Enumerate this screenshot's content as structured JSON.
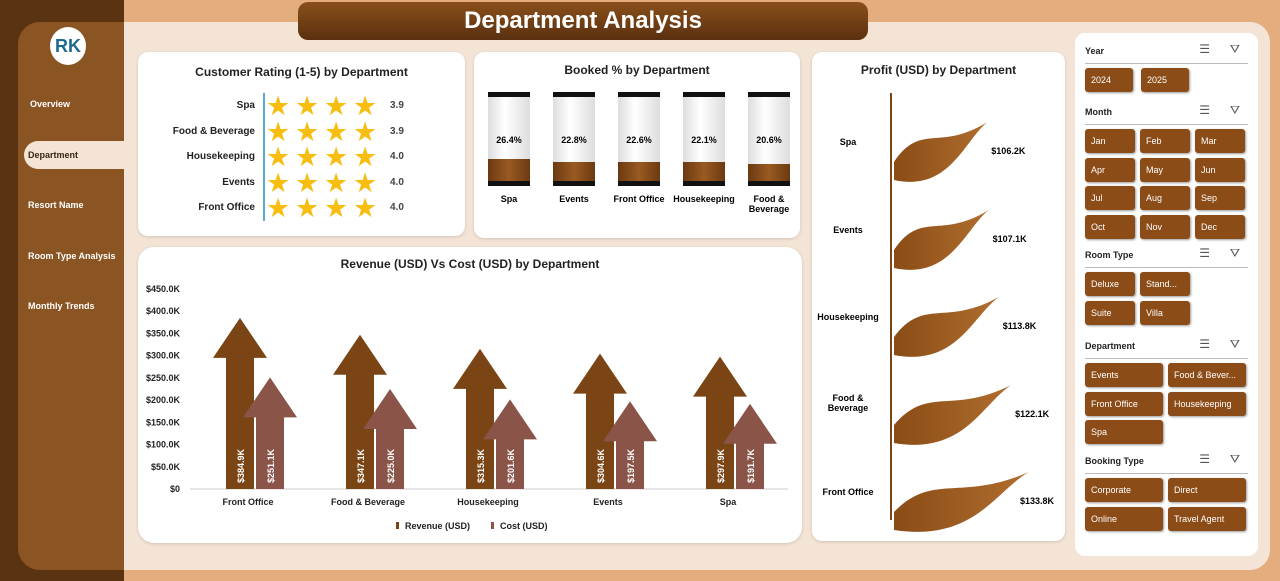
{
  "title": "Department Analysis",
  "nav": [
    "Overview",
    "Department",
    "Resort Name",
    "Room Type Analysis",
    "Monthly Trends"
  ],
  "logo": "RK",
  "rating": {
    "title": "Customer Rating (1-5) by Department",
    "rows": [
      {
        "label": "Spa",
        "value": "3.9"
      },
      {
        "label": "Food & Beverage",
        "value": "3.9"
      },
      {
        "label": "Housekeeping",
        "value": "4.0"
      },
      {
        "label": "Events",
        "value": "4.0"
      },
      {
        "label": "Front Office",
        "value": "4.0"
      }
    ]
  },
  "booked": {
    "title": "Booked % by Department",
    "items": [
      {
        "label": "Spa",
        "value": 26.4,
        "text": "26.4%"
      },
      {
        "label": "Events",
        "value": 22.8,
        "text": "22.8%"
      },
      {
        "label": "Front Office",
        "value": 22.6,
        "text": "22.6%"
      },
      {
        "label": "Housekeeping",
        "value": 22.1,
        "text": "22.1%"
      },
      {
        "label": "Food &\nBeverage",
        "value": 20.6,
        "text": "20.6%"
      }
    ]
  },
  "profit": {
    "title": "Profit (USD) by Department",
    "items": [
      {
        "label": "Spa",
        "value": 106.2,
        "text": "$106.2K"
      },
      {
        "label": "Events",
        "value": 107.1,
        "text": "$107.1K"
      },
      {
        "label": "Housekeeping",
        "value": 113.8,
        "text": "$113.8K"
      },
      {
        "label": "Food &\nBeverage",
        "value": 122.1,
        "text": "$122.1K"
      },
      {
        "label": "Front Office",
        "value": 133.8,
        "text": "$133.8K"
      }
    ]
  },
  "chart_data": {
    "type": "bar",
    "title": "Revenue (USD) Vs Cost (USD) by Department",
    "categories": [
      "Front Office",
      "Food & Beverage",
      "Housekeeping",
      "Events",
      "Spa"
    ],
    "series": [
      {
        "name": "Revenue (USD)",
        "values": [
          384.9,
          347.1,
          315.3,
          304.6,
          297.9
        ],
        "labels": [
          "$384.9K",
          "$347.1K",
          "$315.3K",
          "$304.6K",
          "$297.9K"
        ],
        "color": "#7a4414"
      },
      {
        "name": "Cost (USD)",
        "values": [
          251.1,
          225.0,
          201.6,
          197.5,
          191.7
        ],
        "labels": [
          "$251.1K",
          "$225.0K",
          "$201.6K",
          "$197.5K",
          "$191.7K"
        ],
        "color": "#8a5448"
      }
    ],
    "yticks": [
      "$0",
      "$50.0K",
      "$100.0K",
      "$150.0K",
      "$200.0K",
      "$250.0K",
      "$300.0K",
      "$350.0K",
      "$400.0K",
      "$450.0K"
    ],
    "ylim": [
      0,
      450
    ],
    "legend": "bottom"
  },
  "slicers": [
    {
      "title": "Year",
      "items": [
        "2024",
        "2025"
      ]
    },
    {
      "title": "Month",
      "items": [
        "Jan",
        "Feb",
        "Mar",
        "Apr",
        "May",
        "Jun",
        "Jul",
        "Aug",
        "Sep",
        "Oct",
        "Nov",
        "Dec"
      ]
    },
    {
      "title": "Room Type",
      "items": [
        "Deluxe",
        "Stand...",
        "Suite",
        "Villa"
      ]
    },
    {
      "title": "Department",
      "items": [
        "Events",
        "Food & Bever...",
        "Front Office",
        "Housekeeping",
        "Spa"
      ]
    },
    {
      "title": "Booking Type",
      "items": [
        "Corporate",
        "Direct",
        "Online",
        "Travel Agent"
      ]
    }
  ]
}
